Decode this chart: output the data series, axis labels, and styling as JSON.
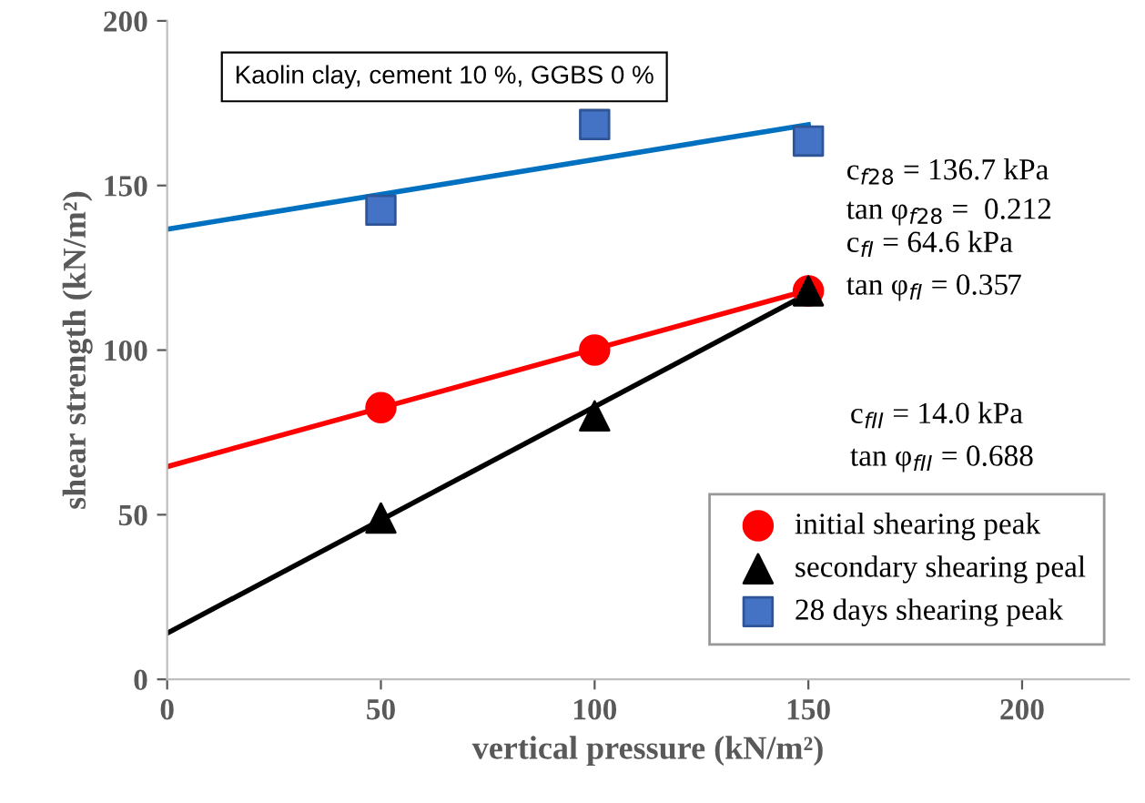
{
  "chart_data": {
    "type": "scatter",
    "xlabel": "vertical pressure (kN/m²)",
    "ylabel": "shear strength (kN/m²)",
    "xlim": [
      0,
      225
    ],
    "xticks": [
      0,
      50,
      100,
      150,
      200
    ],
    "ylim": [
      0,
      200
    ],
    "yticks": [
      0,
      50,
      100,
      150,
      200
    ],
    "grid": false,
    "legend": "bottom right",
    "annotations": [
      "Kaolin clay, cement 10 %, GGBS 0 %",
      "c$_{f28}$ = 136.7 kPa",
      "tan φ$_{f28}$ =  0.212",
      "c$_{fI}$ = 64.6 kPa",
      "tan φ$_{fI}$ = 0.357",
      "c$_{fII}$ = 14.0 kPa",
      "tan φ$_{fII}$ = 0.688"
    ],
    "series": [
      {
        "type": "line",
        "color": "#0070c0",
        "marker": "none",
        "x": [
          0,
          150
        ],
        "values": [
          136.7,
          168.5
        ]
      },
      {
        "type": "line",
        "color": "#ff0000",
        "marker": "none",
        "x": [
          0,
          150
        ],
        "values": [
          64.6,
          118.2
        ]
      },
      {
        "type": "line",
        "color": "#000000",
        "marker": "none",
        "x": [
          0,
          150
        ],
        "values": [
          14.0,
          117.2
        ]
      },
      {
        "name": "initial shearing peak",
        "color": "#ff0000",
        "marker": "circle",
        "x": [
          50,
          100,
          150
        ],
        "values": [
          82.5,
          100,
          118
        ]
      },
      {
        "name": "secondary shearing peal",
        "color": "#000000",
        "marker": "triangle",
        "x": [
          50,
          100,
          150
        ],
        "values": [
          49,
          80,
          118
        ]
      },
      {
        "name": "28 days shearing peak",
        "color": "#4472c4",
        "marker": "square",
        "x": [
          50,
          100,
          150
        ],
        "values": [
          142.5,
          168.5,
          163.5
        ]
      }
    ]
  }
}
